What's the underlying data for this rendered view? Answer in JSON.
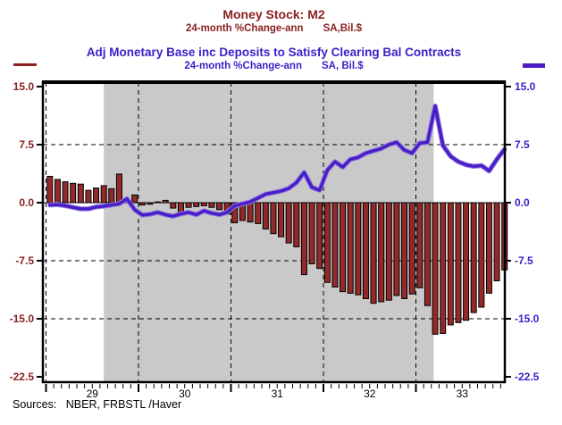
{
  "header": {
    "title1": "Money Stock: M2",
    "subtitle1_measure": "24-month %Change-ann",
    "subtitle1_units": "SA,Bil.$",
    "title2": "Adj Monetary Base inc Deposits to Satisfy Clearing Bal Contracts",
    "subtitle2_measure": "24-month %Change-ann",
    "subtitle2_units": "SA, Bil.$"
  },
  "footer": {
    "sources": "Sources:   NBER, FRBSTL /Haver"
  },
  "colors": {
    "m2_text": "#8B2121",
    "m2_bar_fill": "#932929",
    "bar_outline": "#000000",
    "base_line": "#4A1DC6",
    "base_line_halo": "#8F7BE2",
    "base_text": "#3B1FC8",
    "recession_band": "#C9C9C9",
    "axis": "#000000",
    "background": "#FFFFFF"
  },
  "chart_data": {
    "type": "bar+line combo, dual y-axis",
    "frequency": "monthly",
    "x_start": "1929-01",
    "x_end": "1933-12",
    "x_tick_labels": [
      "29",
      "30",
      "31",
      "32",
      "33"
    ],
    "y_ticks_left": [
      "15.0",
      "7.5",
      "0.0",
      "-7.5",
      "-15.0",
      "-22.5"
    ],
    "y_ticks_right": [
      "15.0",
      "7.5",
      "0.0",
      "-7.5",
      "-15.0",
      "-22.5"
    ],
    "y_tick_values": [
      15,
      7.5,
      0,
      -7.5,
      -15,
      -22.5
    ],
    "gridline_values": [
      7.5,
      -7.5,
      -15
    ],
    "ylim": [
      -23.2,
      15.6
    ],
    "grid": "dashed horizontal at 7.5/-7.5/-15, dashed vertical at each January, solid zero line",
    "recession_band": {
      "source": "NBER",
      "start": "Aug 1929",
      "end": "Mar 1933",
      "start_index": 7.5,
      "end_index": 50.3
    },
    "series": [
      {
        "name": "Money Stock: M2, 24-month %Change-ann (bars)",
        "type": "bar",
        "values": [
          3.4,
          3.0,
          2.7,
          2.5,
          2.4,
          1.6,
          1.9,
          2.2,
          1.8,
          3.7,
          0.4,
          1.0,
          -0.3,
          -0.2,
          0.1,
          0.3,
          -0.7,
          -1.5,
          -0.6,
          -0.5,
          -0.4,
          -0.6,
          -0.9,
          -1.5,
          -2.6,
          -2.3,
          -2.5,
          -2.7,
          -3.4,
          -4.0,
          -4.4,
          -5.2,
          -5.7,
          -9.3,
          -7.9,
          -8.5,
          -10.3,
          -10.9,
          -11.5,
          -11.7,
          -11.9,
          -12.4,
          -13.0,
          -12.8,
          -12.6,
          -12.0,
          -12.4,
          -11.8,
          -11.0,
          -13.3,
          -17.0,
          -16.9,
          -15.8,
          -15.5,
          -15.2,
          -14.2,
          -13.5,
          -11.7,
          -10.1,
          -8.7
        ]
      },
      {
        "name": "Adj Monetary Base inc Deposits to Satisfy Clearing Bal Contracts, 24-month %Change-ann (line)",
        "type": "line",
        "values": [
          -0.3,
          -0.25,
          -0.4,
          -0.6,
          -0.8,
          -0.8,
          -0.55,
          -0.45,
          -0.3,
          -0.15,
          0.5,
          -0.9,
          -1.6,
          -1.5,
          -1.25,
          -1.55,
          -1.75,
          -1.45,
          -1.25,
          -1.55,
          -1.05,
          -1.35,
          -1.55,
          -1.25,
          -0.4,
          -0.15,
          0.1,
          0.6,
          1.1,
          1.3,
          1.5,
          1.85,
          2.6,
          3.9,
          2.0,
          1.6,
          4.2,
          5.3,
          4.6,
          5.6,
          5.85,
          6.4,
          6.7,
          7.0,
          7.5,
          7.8,
          6.8,
          6.4,
          7.7,
          7.8,
          12.5,
          7.4,
          6.0,
          5.3,
          4.9,
          4.7,
          4.8,
          4.1,
          5.6,
          6.9
        ]
      }
    ]
  }
}
